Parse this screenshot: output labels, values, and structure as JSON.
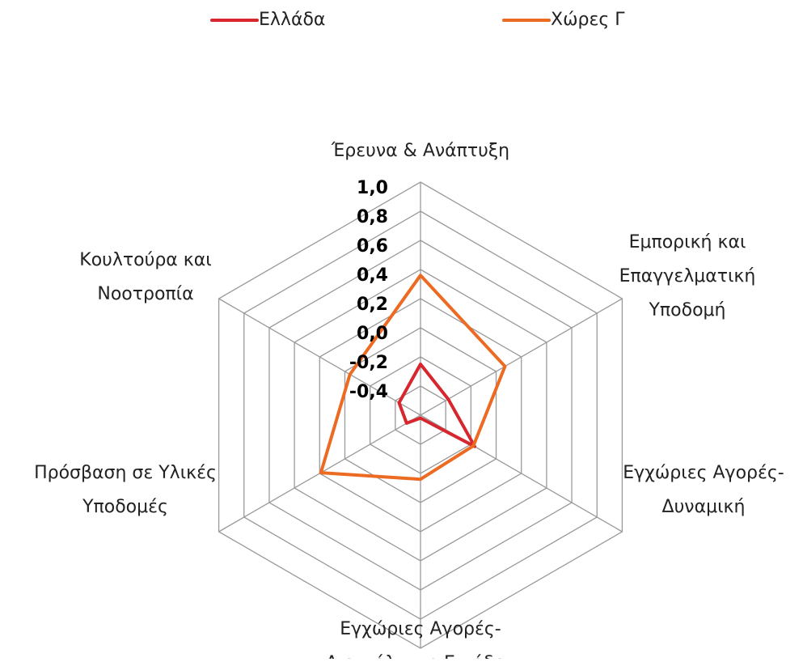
{
  "chart_data": {
    "type": "radar",
    "categories": [
      [
        "Έρευνα & Ανάπτυξη"
      ],
      [
        "Εμπορική και",
        "Επαγγελματική",
        "Υποδομή"
      ],
      [
        "Εγχώριες Αγορές-",
        "Δυναμική"
      ],
      [
        "Εγχώριες Αγορές-",
        "Διευκόλυνση Εισόδου"
      ],
      [
        "Πρόσβαση σε Υλικές",
        "Υποδομές"
      ],
      [
        "Κουλτούρα και",
        "Νοοτροπία"
      ]
    ],
    "series": [
      {
        "name": "Ελλάδα",
        "color": "#d7262e",
        "values": [
          -0.25,
          -0.38,
          -0.17,
          -0.58,
          -0.49,
          -0.43
        ]
      },
      {
        "name": "Χώρες Γ",
        "color": "#ec6a22",
        "values": [
          0.36,
          0.07,
          -0.18,
          -0.16,
          0.19,
          -0.04
        ]
      }
    ],
    "ylim": [
      -0.6,
      1.0
    ],
    "yticks": [
      {
        "value": -0.4,
        "label": "-0,4"
      },
      {
        "value": -0.2,
        "label": "-0,2"
      },
      {
        "value": 0,
        "label": "0,0"
      },
      {
        "value": 0.2,
        "label": "0,2"
      },
      {
        "value": 0.4,
        "label": "0,4"
      },
      {
        "value": 0.6,
        "label": "0,6"
      },
      {
        "value": 0.8,
        "label": "0,8"
      },
      {
        "value": 1.0,
        "label": "1,0"
      }
    ],
    "grid": true,
    "grid_color": "#9a9a9a",
    "legend": "top"
  }
}
